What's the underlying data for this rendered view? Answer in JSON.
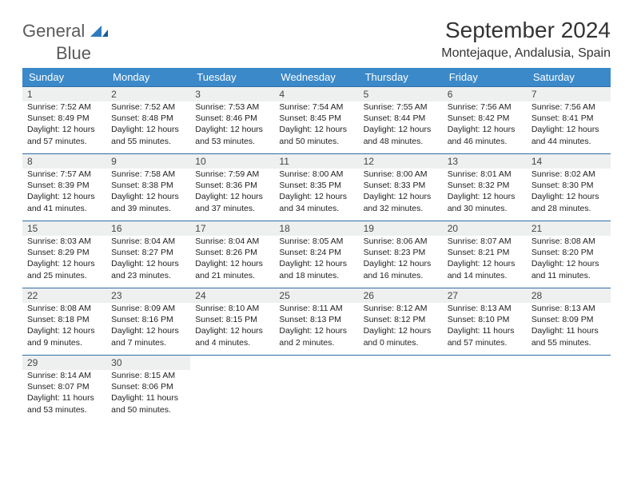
{
  "logo": {
    "word1": "General",
    "word2": "Blue"
  },
  "title": "September 2024",
  "location": "Montejaque, Andalusia, Spain",
  "colors": {
    "header_bg": "#3b89c9",
    "header_text": "#ffffff",
    "rule": "#2f6ea8",
    "daynum_bg": "#eef0f0",
    "logo_gray": "#5a5a5a",
    "logo_blue": "#2f7bbf"
  },
  "dow": [
    "Sunday",
    "Monday",
    "Tuesday",
    "Wednesday",
    "Thursday",
    "Friday",
    "Saturday"
  ],
  "days": [
    {
      "n": "1",
      "sr": "7:52 AM",
      "ss": "8:49 PM",
      "d1": "12 hours",
      "d2": "and 57 minutes."
    },
    {
      "n": "2",
      "sr": "7:52 AM",
      "ss": "8:48 PM",
      "d1": "12 hours",
      "d2": "and 55 minutes."
    },
    {
      "n": "3",
      "sr": "7:53 AM",
      "ss": "8:46 PM",
      "d1": "12 hours",
      "d2": "and 53 minutes."
    },
    {
      "n": "4",
      "sr": "7:54 AM",
      "ss": "8:45 PM",
      "d1": "12 hours",
      "d2": "and 50 minutes."
    },
    {
      "n": "5",
      "sr": "7:55 AM",
      "ss": "8:44 PM",
      "d1": "12 hours",
      "d2": "and 48 minutes."
    },
    {
      "n": "6",
      "sr": "7:56 AM",
      "ss": "8:42 PM",
      "d1": "12 hours",
      "d2": "and 46 minutes."
    },
    {
      "n": "7",
      "sr": "7:56 AM",
      "ss": "8:41 PM",
      "d1": "12 hours",
      "d2": "and 44 minutes."
    },
    {
      "n": "8",
      "sr": "7:57 AM",
      "ss": "8:39 PM",
      "d1": "12 hours",
      "d2": "and 41 minutes."
    },
    {
      "n": "9",
      "sr": "7:58 AM",
      "ss": "8:38 PM",
      "d1": "12 hours",
      "d2": "and 39 minutes."
    },
    {
      "n": "10",
      "sr": "7:59 AM",
      "ss": "8:36 PM",
      "d1": "12 hours",
      "d2": "and 37 minutes."
    },
    {
      "n": "11",
      "sr": "8:00 AM",
      "ss": "8:35 PM",
      "d1": "12 hours",
      "d2": "and 34 minutes."
    },
    {
      "n": "12",
      "sr": "8:00 AM",
      "ss": "8:33 PM",
      "d1": "12 hours",
      "d2": "and 32 minutes."
    },
    {
      "n": "13",
      "sr": "8:01 AM",
      "ss": "8:32 PM",
      "d1": "12 hours",
      "d2": "and 30 minutes."
    },
    {
      "n": "14",
      "sr": "8:02 AM",
      "ss": "8:30 PM",
      "d1": "12 hours",
      "d2": "and 28 minutes."
    },
    {
      "n": "15",
      "sr": "8:03 AM",
      "ss": "8:29 PM",
      "d1": "12 hours",
      "d2": "and 25 minutes."
    },
    {
      "n": "16",
      "sr": "8:04 AM",
      "ss": "8:27 PM",
      "d1": "12 hours",
      "d2": "and 23 minutes."
    },
    {
      "n": "17",
      "sr": "8:04 AM",
      "ss": "8:26 PM",
      "d1": "12 hours",
      "d2": "and 21 minutes."
    },
    {
      "n": "18",
      "sr": "8:05 AM",
      "ss": "8:24 PM",
      "d1": "12 hours",
      "d2": "and 18 minutes."
    },
    {
      "n": "19",
      "sr": "8:06 AM",
      "ss": "8:23 PM",
      "d1": "12 hours",
      "d2": "and 16 minutes."
    },
    {
      "n": "20",
      "sr": "8:07 AM",
      "ss": "8:21 PM",
      "d1": "12 hours",
      "d2": "and 14 minutes."
    },
    {
      "n": "21",
      "sr": "8:08 AM",
      "ss": "8:20 PM",
      "d1": "12 hours",
      "d2": "and 11 minutes."
    },
    {
      "n": "22",
      "sr": "8:08 AM",
      "ss": "8:18 PM",
      "d1": "12 hours",
      "d2": "and 9 minutes."
    },
    {
      "n": "23",
      "sr": "8:09 AM",
      "ss": "8:16 PM",
      "d1": "12 hours",
      "d2": "and 7 minutes."
    },
    {
      "n": "24",
      "sr": "8:10 AM",
      "ss": "8:15 PM",
      "d1": "12 hours",
      "d2": "and 4 minutes."
    },
    {
      "n": "25",
      "sr": "8:11 AM",
      "ss": "8:13 PM",
      "d1": "12 hours",
      "d2": "and 2 minutes."
    },
    {
      "n": "26",
      "sr": "8:12 AM",
      "ss": "8:12 PM",
      "d1": "12 hours",
      "d2": "and 0 minutes."
    },
    {
      "n": "27",
      "sr": "8:13 AM",
      "ss": "8:10 PM",
      "d1": "11 hours",
      "d2": "and 57 minutes."
    },
    {
      "n": "28",
      "sr": "8:13 AM",
      "ss": "8:09 PM",
      "d1": "11 hours",
      "d2": "and 55 minutes."
    },
    {
      "n": "29",
      "sr": "8:14 AM",
      "ss": "8:07 PM",
      "d1": "11 hours",
      "d2": "and 53 minutes."
    },
    {
      "n": "30",
      "sr": "8:15 AM",
      "ss": "8:06 PM",
      "d1": "11 hours",
      "d2": "and 50 minutes."
    }
  ],
  "labels": {
    "sunrise": "Sunrise: ",
    "sunset": "Sunset: ",
    "daylight": "Daylight: "
  },
  "grid": {
    "start_offset": 0,
    "total_cells": 35
  }
}
